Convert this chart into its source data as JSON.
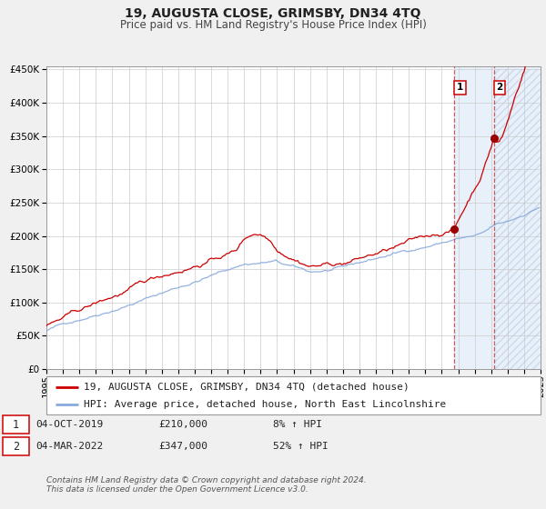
{
  "title": "19, AUGUSTA CLOSE, GRIMSBY, DN34 4TQ",
  "subtitle": "Price paid vs. HM Land Registry's House Price Index (HPI)",
  "x_start": 1995.0,
  "x_end": 2025.0,
  "y_min": 0,
  "y_max": 450000,
  "y_ticks": [
    0,
    50000,
    100000,
    150000,
    200000,
    250000,
    300000,
    350000,
    400000,
    450000
  ],
  "x_ticks": [
    1995,
    1996,
    1997,
    1998,
    1999,
    2000,
    2001,
    2002,
    2003,
    2004,
    2005,
    2006,
    2007,
    2008,
    2009,
    2010,
    2011,
    2012,
    2013,
    2014,
    2015,
    2016,
    2017,
    2018,
    2019,
    2020,
    2021,
    2022,
    2023,
    2024,
    2025
  ],
  "event1_x": 2019.75,
  "event1_y": 210000,
  "event1_label": "04-OCT-2019",
  "event1_price": "£210,000",
  "event1_hpi": "8% ↑ HPI",
  "event2_x": 2022.17,
  "event2_y": 347000,
  "event2_label": "04-MAR-2022",
  "event2_price": "£347,000",
  "event2_hpi": "52% ↑ HPI",
  "red_line_color": "#cc0000",
  "blue_line_color": "#88aadd",
  "shade_color": "#e8f0fa",
  "grid_color": "#cccccc",
  "bg_color": "#f0f0f0",
  "plot_bg_color": "#ffffff",
  "legend1": "19, AUGUSTA CLOSE, GRIMSBY, DN34 4TQ (detached house)",
  "legend2": "HPI: Average price, detached house, North East Lincolnshire",
  "footer1": "Contains HM Land Registry data © Crown copyright and database right 2024.",
  "footer2": "This data is licensed under the Open Government Licence v3.0.",
  "title_fontsize": 10,
  "subtitle_fontsize": 8.5,
  "axis_fontsize": 7.5,
  "legend_fontsize": 8,
  "table_fontsize": 8,
  "footer_fontsize": 6.5
}
